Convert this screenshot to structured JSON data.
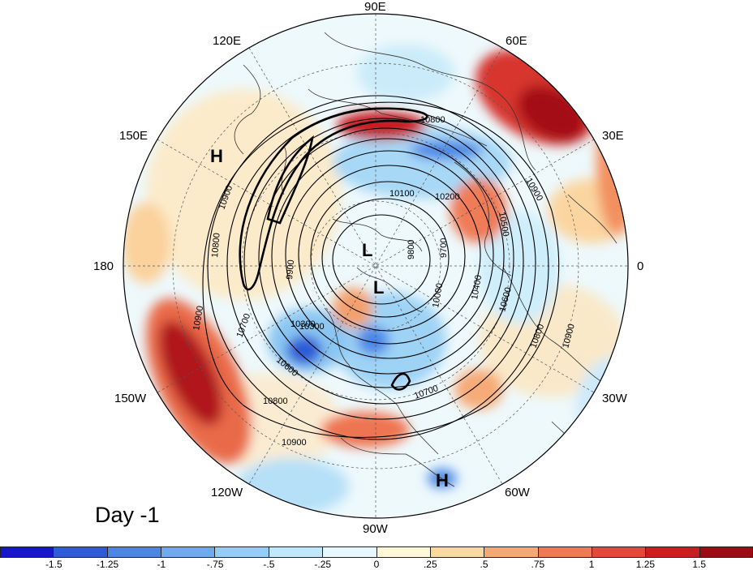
{
  "panel_label": "Day -1",
  "longitude_labels": {
    "lon_90e": "90E",
    "lon_60e": "60E",
    "lon_30e": "30E",
    "lon_0": "0",
    "lon_30w": "30W",
    "lon_60w": "60W",
    "lon_90w": "90W",
    "lon_120w": "120W",
    "lon_150w": "150W",
    "lon_180": "180",
    "lon_150e": "150E",
    "lon_120e": "120E"
  },
  "pressure_centers": [
    {
      "id": "high-nw",
      "text": "H"
    },
    {
      "id": "low-1",
      "text": "L"
    },
    {
      "id": "low-2",
      "text": "L"
    },
    {
      "id": "high-s",
      "text": "H"
    }
  ],
  "contour_labels": [
    "10800",
    "10300",
    "10900",
    "10100",
    "10200",
    "10500",
    "10900",
    "10800",
    "9900",
    "9800",
    "9700",
    "10000",
    "10400",
    "10600",
    "10800",
    "10900",
    "10700",
    "10300",
    "10600",
    "10800",
    "10700",
    "10900",
    "10900"
  ],
  "colorbar": {
    "ticks": [
      "-1.5",
      "-1.25",
      "-1",
      "-.75",
      "-.5",
      "-.25",
      "0",
      ".25",
      ".5",
      ".75",
      "1",
      "1.25",
      "1.5"
    ],
    "colors": [
      "#1717c8",
      "#2e5bd8",
      "#4a86e6",
      "#6eaaf0",
      "#94cdf7",
      "#c0e8fb",
      "#e6f7fd",
      "#fff7d6",
      "#fbd99e",
      "#f6a872",
      "#ef7a52",
      "#e04a36",
      "#c81e1e",
      "#9e0a12"
    ]
  }
}
